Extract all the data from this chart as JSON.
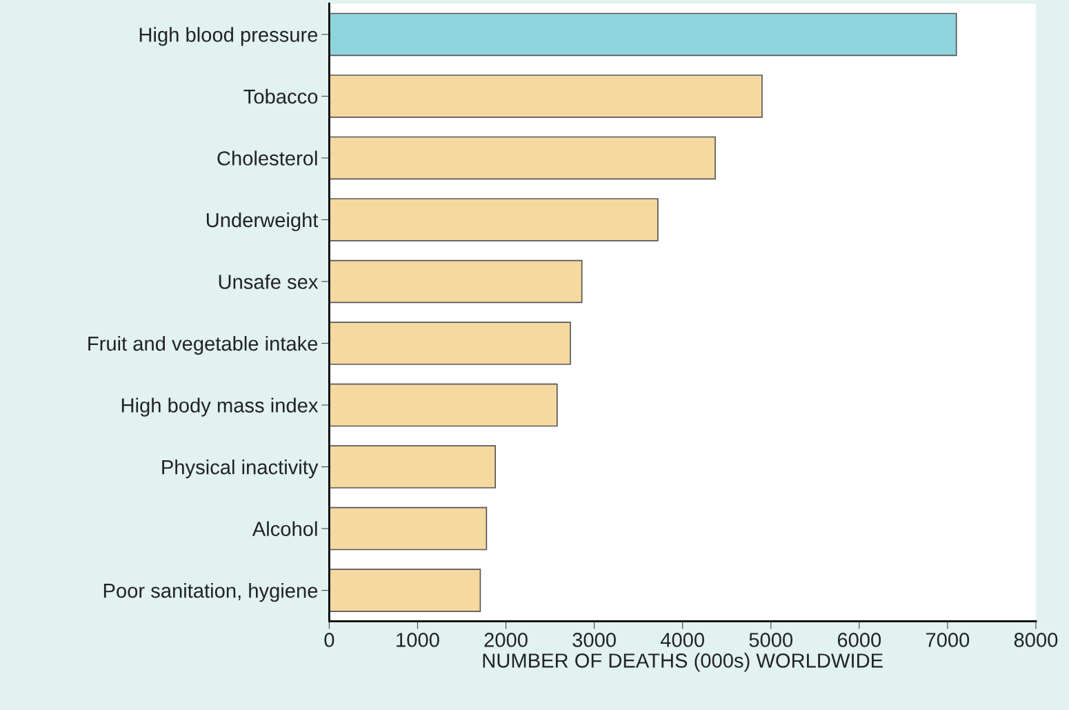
{
  "chart_data": {
    "type": "bar",
    "orientation": "horizontal",
    "xlabel": "NUMBER OF DEATHS (000s) WORLDWIDE",
    "categories": [
      "High blood pressure",
      "Tobacco",
      "Cholesterol",
      "Underweight",
      "Unsafe sex",
      "Fruit and vegetable intake",
      "High body mass index",
      "Physical inactivity",
      "Alcohol",
      "Poor sanitation, hygiene"
    ],
    "values": [
      7100,
      4900,
      4370,
      3720,
      2860,
      2730,
      2580,
      1880,
      1780,
      1710
    ],
    "colors": [
      "#8fd3dd",
      "#f5d9a0",
      "#f5d9a0",
      "#f5d9a0",
      "#f5d9a0",
      "#f5d9a0",
      "#f5d9a0",
      "#f5d9a0",
      "#f5d9a0",
      "#f5d9a0"
    ],
    "xlim": [
      0,
      8000
    ],
    "xticks": [
      0,
      1000,
      2000,
      3000,
      4000,
      5000,
      6000,
      7000,
      8000
    ],
    "grid": false
  }
}
